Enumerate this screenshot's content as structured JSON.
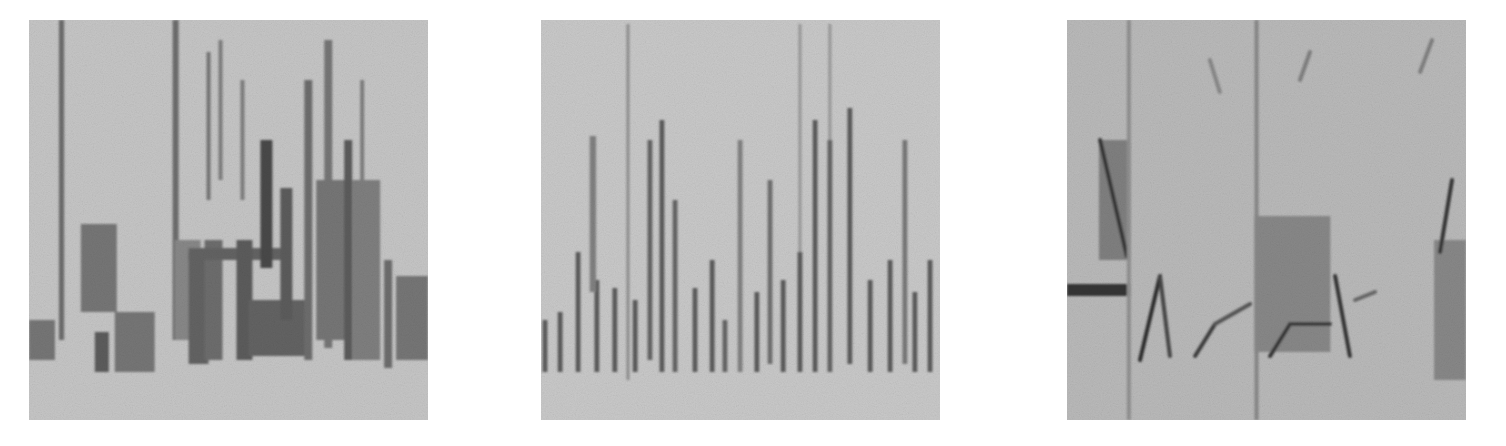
{
  "chart_data": [
    {
      "type": "spectrogram",
      "color": "#c6c6c6",
      "xlim": [
        0,
        100
      ],
      "ylim": [
        0,
        100
      ],
      "tick_labels": false,
      "segments": [
        {
          "kind": "bar",
          "t0": 0,
          "t1": 6.5,
          "f0": 15,
          "f1": 25,
          "level": 0.45
        },
        {
          "kind": "bar",
          "t0": 7.5,
          "t1": 8.8,
          "f0": 20,
          "f1": 100,
          "level": 0.5
        },
        {
          "kind": "bar",
          "t0": 13,
          "t1": 22,
          "f0": 27,
          "f1": 49,
          "level": 0.45
        },
        {
          "kind": "bar",
          "t0": 16.5,
          "t1": 20,
          "f0": 12,
          "f1": 22,
          "level": 0.6
        },
        {
          "kind": "bar",
          "t0": 21.5,
          "t1": 31.5,
          "f0": 12,
          "f1": 27,
          "level": 0.45
        },
        {
          "kind": "bar",
          "t0": 36,
          "t1": 37.5,
          "f0": 20,
          "f1": 100,
          "level": 0.5
        },
        {
          "kind": "bar",
          "t0": 36.5,
          "t1": 43,
          "f0": 20,
          "f1": 45,
          "level": 0.35
        },
        {
          "kind": "bar",
          "t0": 40,
          "t1": 45,
          "f0": 14,
          "f1": 42,
          "level": 0.55
        },
        {
          "kind": "bar",
          "t0": 44,
          "t1": 48.5,
          "f0": 15,
          "f1": 45,
          "level": 0.5
        },
        {
          "kind": "bar",
          "t0": 44.5,
          "t1": 45.5,
          "f0": 55,
          "f1": 92,
          "level": 0.45
        },
        {
          "kind": "bar",
          "t0": 47.5,
          "t1": 48.5,
          "f0": 60,
          "f1": 95,
          "level": 0.4
        },
        {
          "kind": "bar",
          "t0": 40,
          "t1": 65,
          "f0": 40,
          "f1": 43,
          "level": 0.55
        },
        {
          "kind": "bar",
          "t0": 52,
          "t1": 56,
          "f0": 15,
          "f1": 45,
          "level": 0.6
        },
        {
          "kind": "bar",
          "t0": 53,
          "t1": 54,
          "f0": 55,
          "f1": 85,
          "level": 0.4
        },
        {
          "kind": "bar",
          "t0": 58,
          "t1": 61,
          "f0": 38,
          "f1": 70,
          "level": 0.7
        },
        {
          "kind": "bar",
          "t0": 55,
          "t1": 70,
          "f0": 16,
          "f1": 30,
          "level": 0.55
        },
        {
          "kind": "bar",
          "t0": 63,
          "t1": 66,
          "f0": 25,
          "f1": 58,
          "level": 0.6
        },
        {
          "kind": "bar",
          "t0": 69,
          "t1": 71,
          "f0": 15,
          "f1": 85,
          "level": 0.5
        },
        {
          "kind": "bar",
          "t0": 72,
          "t1": 80,
          "f0": 20,
          "f1": 60,
          "level": 0.45
        },
        {
          "kind": "bar",
          "t0": 74,
          "t1": 76,
          "f0": 18,
          "f1": 95,
          "level": 0.45
        },
        {
          "kind": "bar",
          "t0": 79,
          "t1": 81,
          "f0": 15,
          "f1": 70,
          "level": 0.6
        },
        {
          "kind": "bar",
          "t0": 81,
          "t1": 88,
          "f0": 15,
          "f1": 60,
          "level": 0.4
        },
        {
          "kind": "bar",
          "t0": 83,
          "t1": 84,
          "f0": 60,
          "f1": 85,
          "level": 0.4
        },
        {
          "kind": "bar",
          "t0": 89,
          "t1": 91,
          "f0": 13,
          "f1": 40,
          "level": 0.5
        },
        {
          "kind": "bar",
          "t0": 92,
          "t1": 100,
          "f0": 15,
          "f1": 36,
          "level": 0.45
        }
      ]
    },
    {
      "type": "spectrogram",
      "color": "#c9c9c9",
      "xlim": [
        0,
        100
      ],
      "ylim": [
        0,
        100
      ],
      "tick_labels": false,
      "segments": [
        {
          "kind": "bar",
          "t0": 0.4,
          "t1": 1.6,
          "f0": 12,
          "f1": 25,
          "level": 0.6
        },
        {
          "kind": "bar",
          "t0": 4.2,
          "t1": 5.4,
          "f0": 12,
          "f1": 27,
          "level": 0.6
        },
        {
          "kind": "bar",
          "t0": 8.7,
          "t1": 9.9,
          "f0": 12,
          "f1": 42,
          "level": 0.6
        },
        {
          "kind": "bar",
          "t0": 13.4,
          "t1": 14.6,
          "f0": 12,
          "f1": 35,
          "level": 0.6
        },
        {
          "kind": "bar",
          "t0": 12.2,
          "t1": 13.8,
          "f0": 32,
          "f1": 71,
          "level": 0.4
        },
        {
          "kind": "bar",
          "t0": 17.9,
          "t1": 19.1,
          "f0": 12,
          "f1": 33,
          "level": 0.6
        },
        {
          "kind": "bar",
          "t0": 21.4,
          "t1": 22.2,
          "f0": 10,
          "f1": 99,
          "level": 0.3
        },
        {
          "kind": "bar",
          "t0": 23,
          "t1": 24.2,
          "f0": 12,
          "f1": 30,
          "level": 0.6
        },
        {
          "kind": "bar",
          "t0": 26.7,
          "t1": 27.9,
          "f0": 15,
          "f1": 70,
          "level": 0.55
        },
        {
          "kind": "bar",
          "t0": 29.7,
          "t1": 30.9,
          "f0": 12,
          "f1": 75,
          "level": 0.6
        },
        {
          "kind": "bar",
          "t0": 33,
          "t1": 34.2,
          "f0": 12,
          "f1": 55,
          "level": 0.55
        },
        {
          "kind": "bar",
          "t0": 38,
          "t1": 39.2,
          "f0": 12,
          "f1": 33,
          "level": 0.6
        },
        {
          "kind": "bar",
          "t0": 42.3,
          "t1": 43.5,
          "f0": 12,
          "f1": 40,
          "level": 0.6
        },
        {
          "kind": "bar",
          "t0": 45.5,
          "t1": 46.7,
          "f0": 12,
          "f1": 25,
          "level": 0.55
        },
        {
          "kind": "bar",
          "t0": 49.3,
          "t1": 50.5,
          "f0": 12,
          "f1": 70,
          "level": 0.4
        },
        {
          "kind": "bar",
          "t0": 53.5,
          "t1": 54.7,
          "f0": 12,
          "f1": 32,
          "level": 0.6
        },
        {
          "kind": "bar",
          "t0": 56.8,
          "t1": 58,
          "f0": 14,
          "f1": 60,
          "level": 0.5
        },
        {
          "kind": "bar",
          "t0": 60.1,
          "t1": 61.3,
          "f0": 12,
          "f1": 35,
          "level": 0.6
        },
        {
          "kind": "bar",
          "t0": 64.3,
          "t1": 65.5,
          "f0": 12,
          "f1": 42,
          "level": 0.6
        },
        {
          "kind": "bar",
          "t0": 64.5,
          "t1": 65.3,
          "f0": 42,
          "f1": 99,
          "level": 0.25
        },
        {
          "kind": "bar",
          "t0": 68.1,
          "t1": 69.3,
          "f0": 12,
          "f1": 75,
          "level": 0.6
        },
        {
          "kind": "bar",
          "t0": 71.8,
          "t1": 73,
          "f0": 12,
          "f1": 70,
          "level": 0.55
        },
        {
          "kind": "bar",
          "t0": 72,
          "t1": 72.8,
          "f0": 70,
          "f1": 99,
          "level": 0.25
        },
        {
          "kind": "bar",
          "t0": 76.8,
          "t1": 78,
          "f0": 14,
          "f1": 78,
          "level": 0.6
        },
        {
          "kind": "bar",
          "t0": 81.9,
          "t1": 83.1,
          "f0": 12,
          "f1": 35,
          "level": 0.6
        },
        {
          "kind": "bar",
          "t0": 86.9,
          "t1": 88.1,
          "f0": 12,
          "f1": 40,
          "level": 0.6
        },
        {
          "kind": "bar",
          "t0": 90.6,
          "t1": 91.8,
          "f0": 14,
          "f1": 70,
          "level": 0.45
        },
        {
          "kind": "bar",
          "t0": 93.1,
          "t1": 94.3,
          "f0": 12,
          "f1": 32,
          "level": 0.6
        },
        {
          "kind": "bar",
          "t0": 96.9,
          "t1": 98.1,
          "f0": 12,
          "f1": 40,
          "level": 0.6
        }
      ]
    },
    {
      "type": "spectrogram",
      "color": "#bababa",
      "xlim": [
        0,
        100
      ],
      "ylim": [
        0,
        100
      ],
      "tick_labels": false,
      "segments": [
        {
          "kind": "bar",
          "t0": 8,
          "t1": 16,
          "f0": 40,
          "f1": 70,
          "level": 0.35
        },
        {
          "kind": "bar",
          "t0": 0,
          "t1": 16,
          "f0": 31,
          "f1": 34,
          "level": 0.8
        },
        {
          "kind": "stroke",
          "t0": 8.3,
          "t1": 15,
          "f0": 70,
          "f1": 41,
          "level": 0.8
        },
        {
          "kind": "bar",
          "t0": 15,
          "t1": 16,
          "f0": 0,
          "f1": 100,
          "level": 0.25
        },
        {
          "kind": "stroke",
          "t0": 18.3,
          "t1": 23.3,
          "f0": 15,
          "f1": 36,
          "level": 0.85
        },
        {
          "kind": "stroke",
          "t0": 23.3,
          "t1": 25.8,
          "f0": 36,
          "f1": 16,
          "level": 0.7
        },
        {
          "kind": "stroke",
          "t0": 32.1,
          "t1": 37.1,
          "f0": 16,
          "f1": 24,
          "level": 0.75
        },
        {
          "kind": "stroke",
          "t0": 37.1,
          "t1": 45.9,
          "f0": 24,
          "f1": 29,
          "level": 0.6
        },
        {
          "kind": "bar",
          "t0": 47,
          "t1": 48,
          "f0": 0,
          "f1": 100,
          "level": 0.3
        },
        {
          "kind": "bar",
          "t0": 47,
          "t1": 66,
          "f0": 17,
          "f1": 51,
          "level": 0.3
        },
        {
          "kind": "stroke",
          "t0": 50.9,
          "t1": 55.9,
          "f0": 16,
          "f1": 24,
          "level": 0.8
        },
        {
          "kind": "stroke",
          "t0": 55.9,
          "t1": 65.9,
          "f0": 24,
          "f1": 24,
          "level": 0.75
        },
        {
          "kind": "stroke",
          "t0": 67.2,
          "t1": 70.9,
          "f0": 36,
          "f1": 16,
          "level": 0.8
        },
        {
          "kind": "stroke",
          "t0": 72.2,
          "t1": 77.2,
          "f0": 30,
          "f1": 32,
          "level": 0.5
        },
        {
          "kind": "bar",
          "t0": 92,
          "t1": 100,
          "f0": 10,
          "f1": 45,
          "level": 0.3
        },
        {
          "kind": "stroke",
          "t0": 93.5,
          "t1": 96.5,
          "f0": 42,
          "f1": 60,
          "level": 0.8
        },
        {
          "kind": "stroke",
          "t0": 35.8,
          "t1": 38.3,
          "f0": 90,
          "f1": 82,
          "level": 0.3
        },
        {
          "kind": "stroke",
          "t0": 58.4,
          "t1": 60.9,
          "f0": 85,
          "f1": 92,
          "level": 0.35
        },
        {
          "kind": "stroke",
          "t0": 88.5,
          "t1": 91.5,
          "f0": 87,
          "f1": 95,
          "level": 0.35
        }
      ]
    }
  ]
}
